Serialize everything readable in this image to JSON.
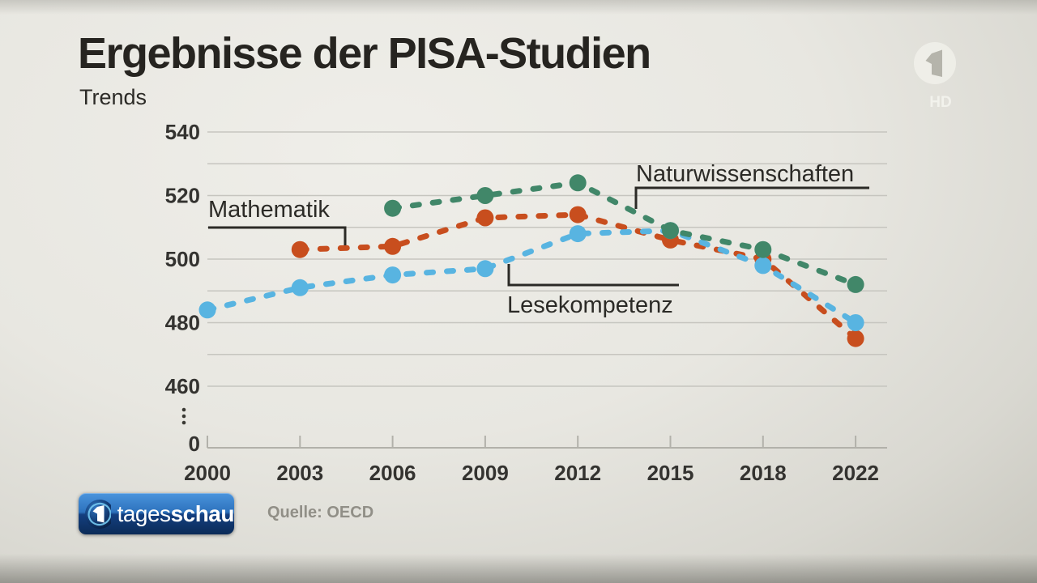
{
  "header": {
    "title": "Ergebnisse der PISA-Studien",
    "subtitle": "Trends"
  },
  "chart_data": {
    "type": "line",
    "title": "Ergebnisse der PISA-Studien",
    "subtitle": "Trends",
    "x": [
      "2000",
      "2003",
      "2006",
      "2009",
      "2012",
      "2015",
      "2018",
      "2022"
    ],
    "series": [
      {
        "name": "Mathematik",
        "color": "#c84e1e",
        "values": [
          null,
          503,
          504,
          513,
          514,
          506,
          500,
          475
        ]
      },
      {
        "name": "Lesekompetenz",
        "color": "#58b4e1",
        "values": [
          484,
          491,
          495,
          497,
          508,
          509,
          498,
          480
        ]
      },
      {
        "name": "Naturwissenschaften",
        "color": "#418769",
        "values": [
          null,
          null,
          516,
          520,
          524,
          509,
          503,
          492
        ]
      }
    ],
    "y_axis": {
      "labeled_ticks": [
        540,
        520,
        500,
        480,
        460
      ],
      "zero_label": "0",
      "grid_min": 460,
      "grid_max": 540,
      "grid_step": 10,
      "axis_break": true
    },
    "line_style": "dashed",
    "grid": true,
    "legend_position": "inline-annotations",
    "annotations": [
      {
        "text": "Mathematik",
        "text_x": 257,
        "text_y": 268,
        "line": [
          [
            257,
            281
          ],
          [
            426,
            281
          ],
          [
            426,
            303
          ]
        ]
      },
      {
        "text": "Lesekompetenz",
        "text_x": 626,
        "text_y": 386,
        "line": [
          [
            628,
            326
          ],
          [
            628,
            352
          ],
          [
            838,
            352
          ]
        ]
      },
      {
        "text": "Naturwissenschaften",
        "text_x": 785,
        "text_y": 224,
        "line": [
          [
            785,
            258
          ],
          [
            785,
            232
          ],
          [
            1073,
            232
          ]
        ]
      }
    ]
  },
  "source": {
    "label": "Quelle: OECD"
  },
  "branding": {
    "logo_text_regular": "tages",
    "logo_text_bold": "schau",
    "watermark_hd": "HD"
  }
}
